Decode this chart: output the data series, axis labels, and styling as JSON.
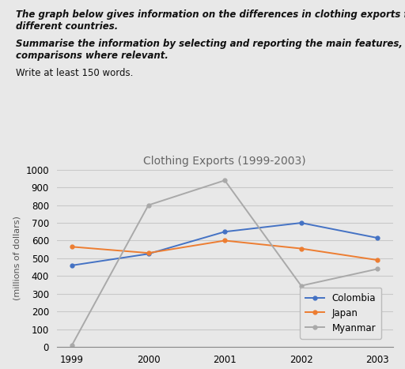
{
  "title": "Clothing Exports (1999-2003)",
  "ylabel": "(millions of dollars)",
  "years": [
    1999,
    2000,
    2001,
    2002,
    2003
  ],
  "colombia": [
    460,
    525,
    650,
    700,
    615
  ],
  "japan": [
    565,
    530,
    600,
    555,
    490
  ],
  "myanmar": [
    10,
    800,
    940,
    345,
    440
  ],
  "colombia_color": "#4472C4",
  "japan_color": "#ED7D31",
  "myanmar_color": "#A9A9A9",
  "ylim": [
    0,
    1000
  ],
  "yticks": [
    0,
    100,
    200,
    300,
    400,
    500,
    600,
    700,
    800,
    900,
    1000
  ],
  "background_color": "#e8e8e8",
  "plot_bg_color": "#e8e8e8",
  "grid_color": "#c8c8c8",
  "title_fontsize": 10,
  "axis_label_fontsize": 8,
  "tick_fontsize": 8.5,
  "legend_fontsize": 8.5,
  "header_line1": "The graph below gives information on the differences in clothing exports from three",
  "header_line2": "different countries.",
  "header_line3": "Summarise the information by selecting and reporting the main features, and make",
  "header_line4": "comparisons where relevant.",
  "header_line5": "Write at least 150 words."
}
